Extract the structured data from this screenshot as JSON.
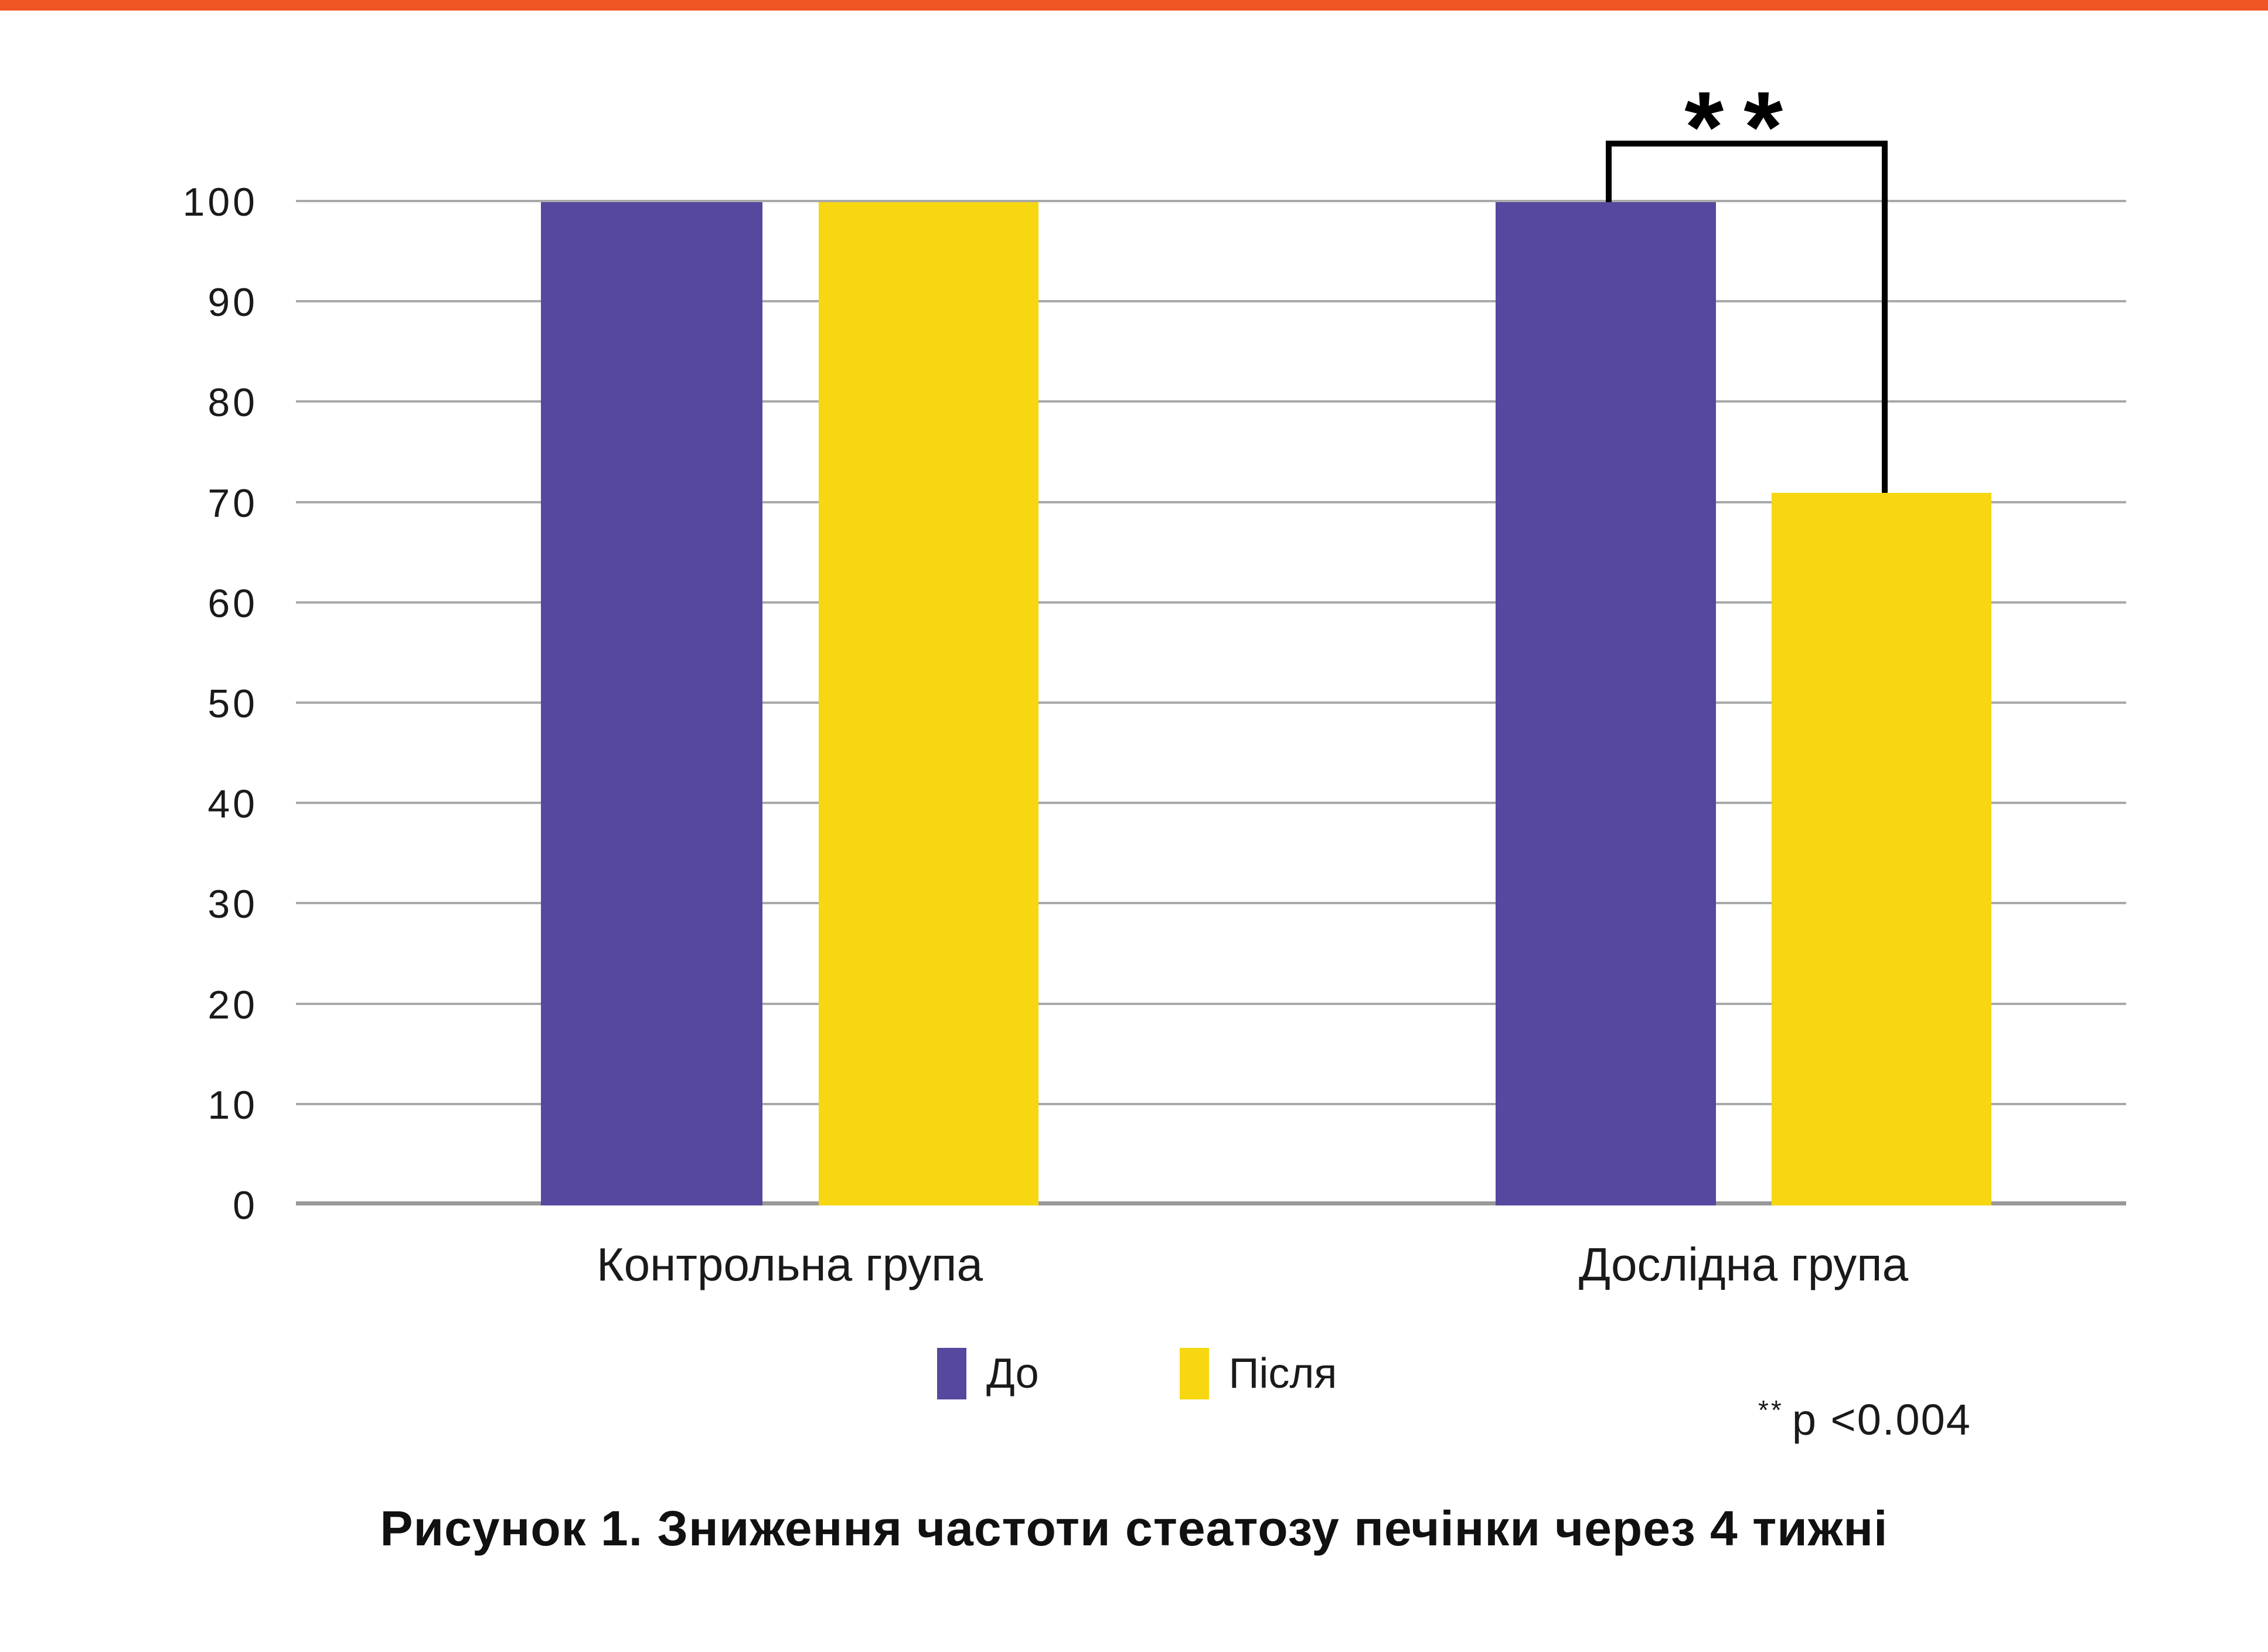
{
  "page": {
    "accent_color": "#EF5423",
    "background": "#FFFFFF"
  },
  "chart_data": {
    "type": "bar",
    "categories": [
      "Контрольна група",
      "Дослідна група"
    ],
    "series": [
      {
        "name": "До",
        "color": "#55489E",
        "values": [
          100,
          100
        ]
      },
      {
        "name": "Після",
        "color": "#F6D711",
        "values": [
          100,
          71
        ]
      }
    ],
    "title": "Рисунок 1. Зниження частоти стеатозу печінки через 4 тижні",
    "xlabel": "",
    "ylabel": "",
    "ylim": [
      0,
      100
    ],
    "yticks": [
      0,
      10,
      20,
      30,
      40,
      50,
      60,
      70,
      80,
      90,
      100
    ],
    "grid": "horizontal",
    "gridline_color": "#A9A9A9",
    "axisline_color": "#999999",
    "legend_position": "bottom",
    "annotation": {
      "significance_stars": "**",
      "compares": [
        "Дослідна група / До",
        "Дослідна група / Після"
      ]
    }
  },
  "p_note": {
    "stars": "**",
    "text": "p <0.004"
  },
  "caption": {
    "text": "Рисунок 1. Зниження частоти стеатозу печінки через 4 тижні"
  }
}
